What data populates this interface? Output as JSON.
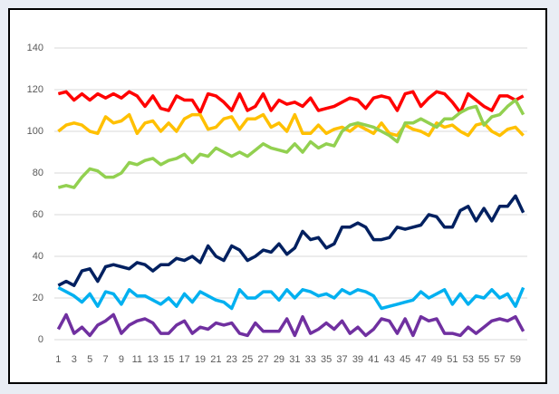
{
  "chart_data": {
    "type": "line",
    "categories": [
      1,
      null,
      3,
      null,
      5,
      null,
      7,
      null,
      9,
      null,
      11,
      null,
      13,
      null,
      15,
      null,
      17,
      null,
      19,
      null,
      21,
      null,
      23,
      null,
      25,
      null,
      27,
      null,
      29,
      null,
      31,
      null,
      33,
      null,
      35,
      null,
      37,
      null,
      39,
      null,
      41,
      null,
      43,
      null,
      45,
      null,
      47,
      null,
      49,
      null,
      51,
      null,
      53,
      null,
      55,
      null,
      57,
      null,
      59,
      null
    ],
    "series": [
      {
        "color": "#ff0000",
        "values": [
          118,
          119,
          115,
          118,
          115,
          118,
          116,
          118,
          116,
          119,
          117,
          112,
          117,
          111,
          110,
          117,
          115,
          115,
          109,
          118,
          117,
          114,
          110,
          118,
          110,
          112,
          118,
          110,
          115,
          113,
          114,
          112,
          116,
          110,
          111,
          112,
          114,
          116,
          115,
          111,
          116,
          117,
          116,
          110,
          118,
          119,
          112,
          116,
          119,
          118,
          114,
          109,
          118,
          115,
          112,
          110,
          117,
          117,
          115,
          117
        ]
      },
      {
        "color": "#ffc000",
        "values": [
          100,
          103,
          104,
          103,
          100,
          99,
          107,
          104,
          105,
          108,
          99,
          104,
          105,
          100,
          104,
          100,
          106,
          108,
          108,
          101,
          102,
          106,
          107,
          101,
          106,
          106,
          108,
          102,
          104,
          100,
          108,
          99,
          99,
          103,
          99,
          101,
          102,
          100,
          103,
          101,
          99,
          104,
          99,
          98,
          103,
          101,
          100,
          98,
          104,
          102,
          103,
          100,
          98,
          103,
          104,
          100,
          98,
          101,
          102,
          98
        ]
      },
      {
        "color": "#92d050",
        "values": [
          73,
          74,
          73,
          78,
          82,
          81,
          78,
          78,
          80,
          85,
          84,
          86,
          87,
          84,
          86,
          87,
          89,
          85,
          89,
          88,
          92,
          90,
          88,
          90,
          88,
          91,
          94,
          92,
          91,
          90,
          94,
          90,
          95,
          92,
          94,
          93,
          100,
          103,
          104,
          103,
          102,
          100,
          98,
          95,
          104,
          104,
          106,
          104,
          102,
          106,
          106,
          109,
          111,
          112,
          103,
          107,
          108,
          112,
          115,
          108
        ]
      },
      {
        "color": "#002060",
        "values": [
          26,
          28,
          26,
          33,
          34,
          28,
          35,
          36,
          35,
          34,
          37,
          36,
          33,
          36,
          36,
          39,
          38,
          40,
          37,
          45,
          40,
          38,
          45,
          43,
          38,
          40,
          43,
          42,
          46,
          41,
          44,
          52,
          48,
          49,
          44,
          46,
          54,
          54,
          56,
          54,
          48,
          48,
          49,
          54,
          53,
          54,
          55,
          60,
          59,
          54,
          54,
          62,
          64,
          57,
          63,
          57,
          64,
          64,
          69,
          61
        ]
      },
      {
        "color": "#00b0f0",
        "values": [
          25,
          23,
          21,
          18,
          22,
          16,
          23,
          22,
          17,
          24,
          21,
          21,
          19,
          17,
          20,
          16,
          22,
          18,
          23,
          21,
          19,
          18,
          15,
          24,
          20,
          20,
          23,
          23,
          19,
          24,
          20,
          24,
          23,
          21,
          22,
          20,
          24,
          22,
          24,
          23,
          21,
          15,
          16,
          17,
          18,
          19,
          23,
          20,
          22,
          24,
          17,
          22,
          17,
          21,
          20,
          24,
          20,
          22,
          16,
          25
        ]
      },
      {
        "color": "#7030a0",
        "values": [
          5,
          12,
          3,
          6,
          2,
          7,
          9,
          12,
          3,
          7,
          9,
          10,
          8,
          3,
          3,
          7,
          9,
          3,
          6,
          5,
          8,
          7,
          8,
          3,
          2,
          8,
          4,
          4,
          4,
          10,
          2,
          11,
          3,
          5,
          8,
          5,
          9,
          3,
          6,
          2,
          5,
          10,
          9,
          3,
          10,
          2,
          11,
          9,
          10,
          3,
          3,
          2,
          6,
          3,
          6,
          9,
          10,
          9,
          11,
          4
        ]
      }
    ],
    "ylim": [
      0,
      140
    ],
    "yticks": [
      0,
      20,
      40,
      60,
      80,
      100,
      120,
      140
    ],
    "grid": true
  }
}
